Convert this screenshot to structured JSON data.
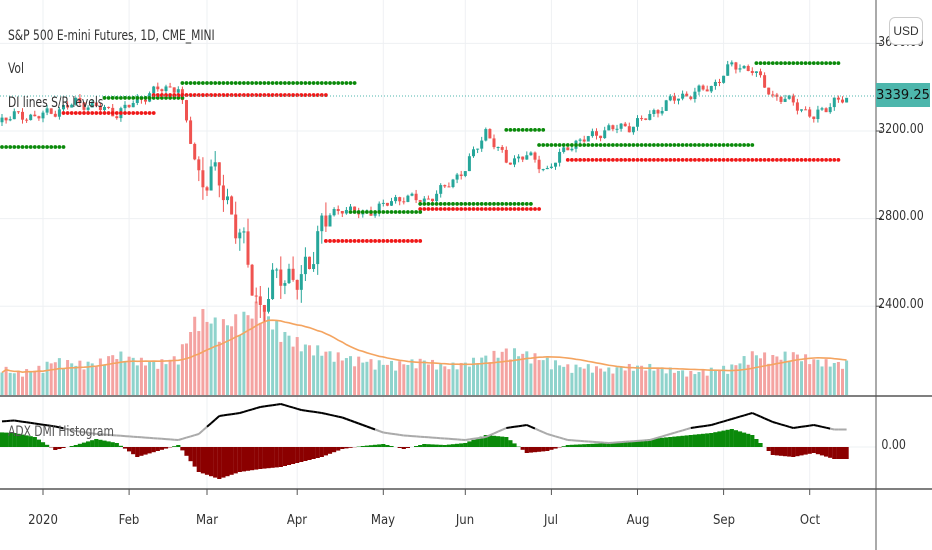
{
  "header": {
    "title": "S&P 500 E-mini Futures, 1D, CME_MINI",
    "vol_label": "Vol",
    "sr_label": "DI lines S/R levels",
    "indicator_label": "ADX DMI Histogram"
  },
  "currency_button": "USD",
  "last_price": "3339.25",
  "colors": {
    "up": "#26a69a",
    "down": "#ef5350",
    "vol_up": "#8fd3cc",
    "vol_down": "#f4a3a1",
    "vol_ma": "#f4a460",
    "sr_green": "#0a8a0a",
    "sr_red": "#f01818",
    "hist_pos": "#0a8a0a",
    "hist_neg": "#8b0000",
    "adx_strong": "#000000",
    "adx_weak": "#aaaaaa",
    "price_label": "#4db6ac"
  },
  "chart_data": {
    "type": "candlestick",
    "title": "S&P 500 E-mini Futures, 1D, CME_MINI",
    "price_axis": {
      "ticks": [
        "3600.00",
        "3200.00",
        "2800.00",
        "2400.00"
      ],
      "tick_values": [
        3600,
        3200,
        2800,
        2400
      ]
    },
    "indicator_axis": {
      "ticks": [
        "0.00"
      ]
    },
    "time_axis": {
      "labels": [
        "2020",
        "Feb",
        "Mar",
        "Apr",
        "May",
        "Jun",
        "Jul",
        "Aug",
        "Sep",
        "Oct"
      ],
      "label_bars": [
        0,
        21,
        40,
        62,
        83,
        103,
        124,
        145,
        166,
        187
      ]
    },
    "weekly_start_bar": -12,
    "weekly_closes": [
      3240,
      3270,
      3265,
      3290,
      3330,
      3310,
      3280,
      3340,
      3390,
      3400,
      2990,
      2980,
      2720,
      2380,
      2560,
      2500,
      2780,
      2850,
      2820,
      2860,
      2900,
      2880,
      2940,
      3030,
      3200,
      3060,
      3090,
      3020,
      3130,
      3170,
      3210,
      3220,
      3270,
      3340,
      3370,
      3400,
      3500,
      3480,
      3360,
      3330,
      3260,
      3340
    ],
    "weekly_volume": [
      1.0,
      0.7,
      0.8,
      1.1,
      1.0,
      1.0,
      1.3,
      1.1,
      1.0,
      1.2,
      2.6,
      2.2,
      2.4,
      2.8,
      2.0,
      1.6,
      1.4,
      1.2,
      1.1,
      1.0,
      1.0,
      1.1,
      0.9,
      1.0,
      1.2,
      1.4,
      1.3,
      1.1,
      0.9,
      0.9,
      0.8,
      0.9,
      0.9,
      0.8,
      0.7,
      0.8,
      0.9,
      1.3,
      1.2,
      1.3,
      1.1,
      1.0
    ],
    "weekly_hist": [
      15,
      14,
      10,
      -3,
      2,
      8,
      4,
      -10,
      -4,
      2,
      -25,
      -32,
      -25,
      -22,
      -20,
      -15,
      -10,
      -2,
      1,
      3,
      -2,
      3,
      2,
      4,
      12,
      10,
      -6,
      -4,
      2,
      3,
      4,
      5,
      8,
      10,
      12,
      14,
      18,
      12,
      -8,
      -10,
      -6,
      -12
    ],
    "weekly_adx": [
      22,
      23,
      21,
      19,
      16,
      14,
      13,
      12,
      11,
      10,
      14,
      26,
      28,
      32,
      34,
      30,
      28,
      25,
      20,
      15,
      13,
      12,
      11,
      10,
      12,
      18,
      20,
      14,
      10,
      9,
      8,
      9,
      10,
      14,
      18,
      20,
      24,
      28,
      22,
      18,
      20,
      17
    ],
    "sr_levels": [
      {
        "color": "green",
        "price": 3127,
        "from_bar": -10,
        "to_bar": 5
      },
      {
        "color": "green",
        "price": 3351,
        "from_bar": 15,
        "to_bar": 34
      },
      {
        "color": "red",
        "price": 3282,
        "from_bar": 5,
        "to_bar": 27
      },
      {
        "color": "green",
        "price": 3419,
        "from_bar": 34,
        "to_bar": 76
      },
      {
        "color": "red",
        "price": 3364,
        "from_bar": 27,
        "to_bar": 69
      },
      {
        "color": "green",
        "price": 3205,
        "from_bar": 113,
        "to_bar": 122
      },
      {
        "color": "green",
        "price": 2867,
        "from_bar": 92,
        "to_bar": 119
      },
      {
        "color": "red",
        "price": 2844,
        "from_bar": 92,
        "to_bar": 121
      },
      {
        "color": "green",
        "price": 2830,
        "from_bar": 75,
        "to_bar": 92
      },
      {
        "color": "red",
        "price": 2698,
        "from_bar": 69,
        "to_bar": 92
      },
      {
        "color": "green",
        "price": 3136,
        "from_bar": 121,
        "to_bar": 173
      },
      {
        "color": "red",
        "price": 3068,
        "from_bar": 128,
        "to_bar": 194
      },
      {
        "color": "green",
        "price": 3510,
        "from_bar": 174,
        "to_bar": 194
      }
    ]
  }
}
